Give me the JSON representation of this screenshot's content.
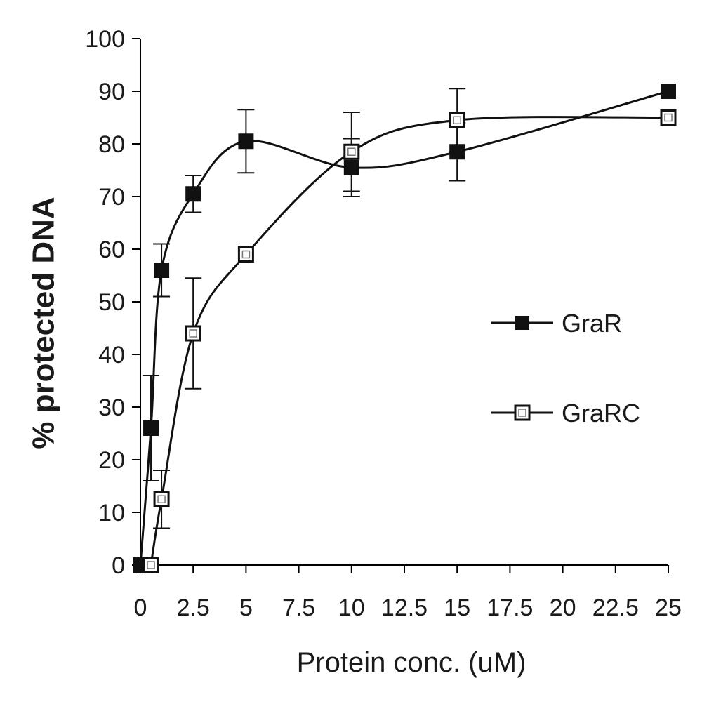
{
  "chart_data": {
    "type": "line",
    "title": "",
    "xlabel": "Protein conc. (uM)",
    "ylabel": "% protected DNA",
    "x_ticks": [
      "0",
      "2.5",
      "5",
      "7.5",
      "10",
      "12.5",
      "15",
      "17.5",
      "20",
      "22.5",
      "25"
    ],
    "y_ticks": [
      "0",
      "10",
      "20",
      "30",
      "40",
      "50",
      "60",
      "70",
      "80",
      "90",
      "100"
    ],
    "xlim": [
      0,
      25
    ],
    "ylim": [
      0,
      100
    ],
    "grid": false,
    "legend_position": "right",
    "series": [
      {
        "name": "GraR",
        "marker": "filled-square",
        "x": [
          0,
          0.5,
          1,
          2.5,
          5,
          10,
          15,
          25
        ],
        "y": [
          0,
          26,
          56,
          70.5,
          80.5,
          75.5,
          78.5,
          90
        ],
        "error": [
          0,
          10,
          5,
          3.5,
          6,
          5.5,
          5.5,
          0
        ]
      },
      {
        "name": "GraRC",
        "marker": "open-square",
        "x": [
          0.5,
          1,
          2.5,
          5,
          10,
          15,
          25
        ],
        "y": [
          0,
          12.5,
          44,
          59,
          78.5,
          84.5,
          85
        ],
        "error": [
          0,
          5.5,
          10.5,
          0,
          7.5,
          6,
          0
        ]
      }
    ]
  }
}
